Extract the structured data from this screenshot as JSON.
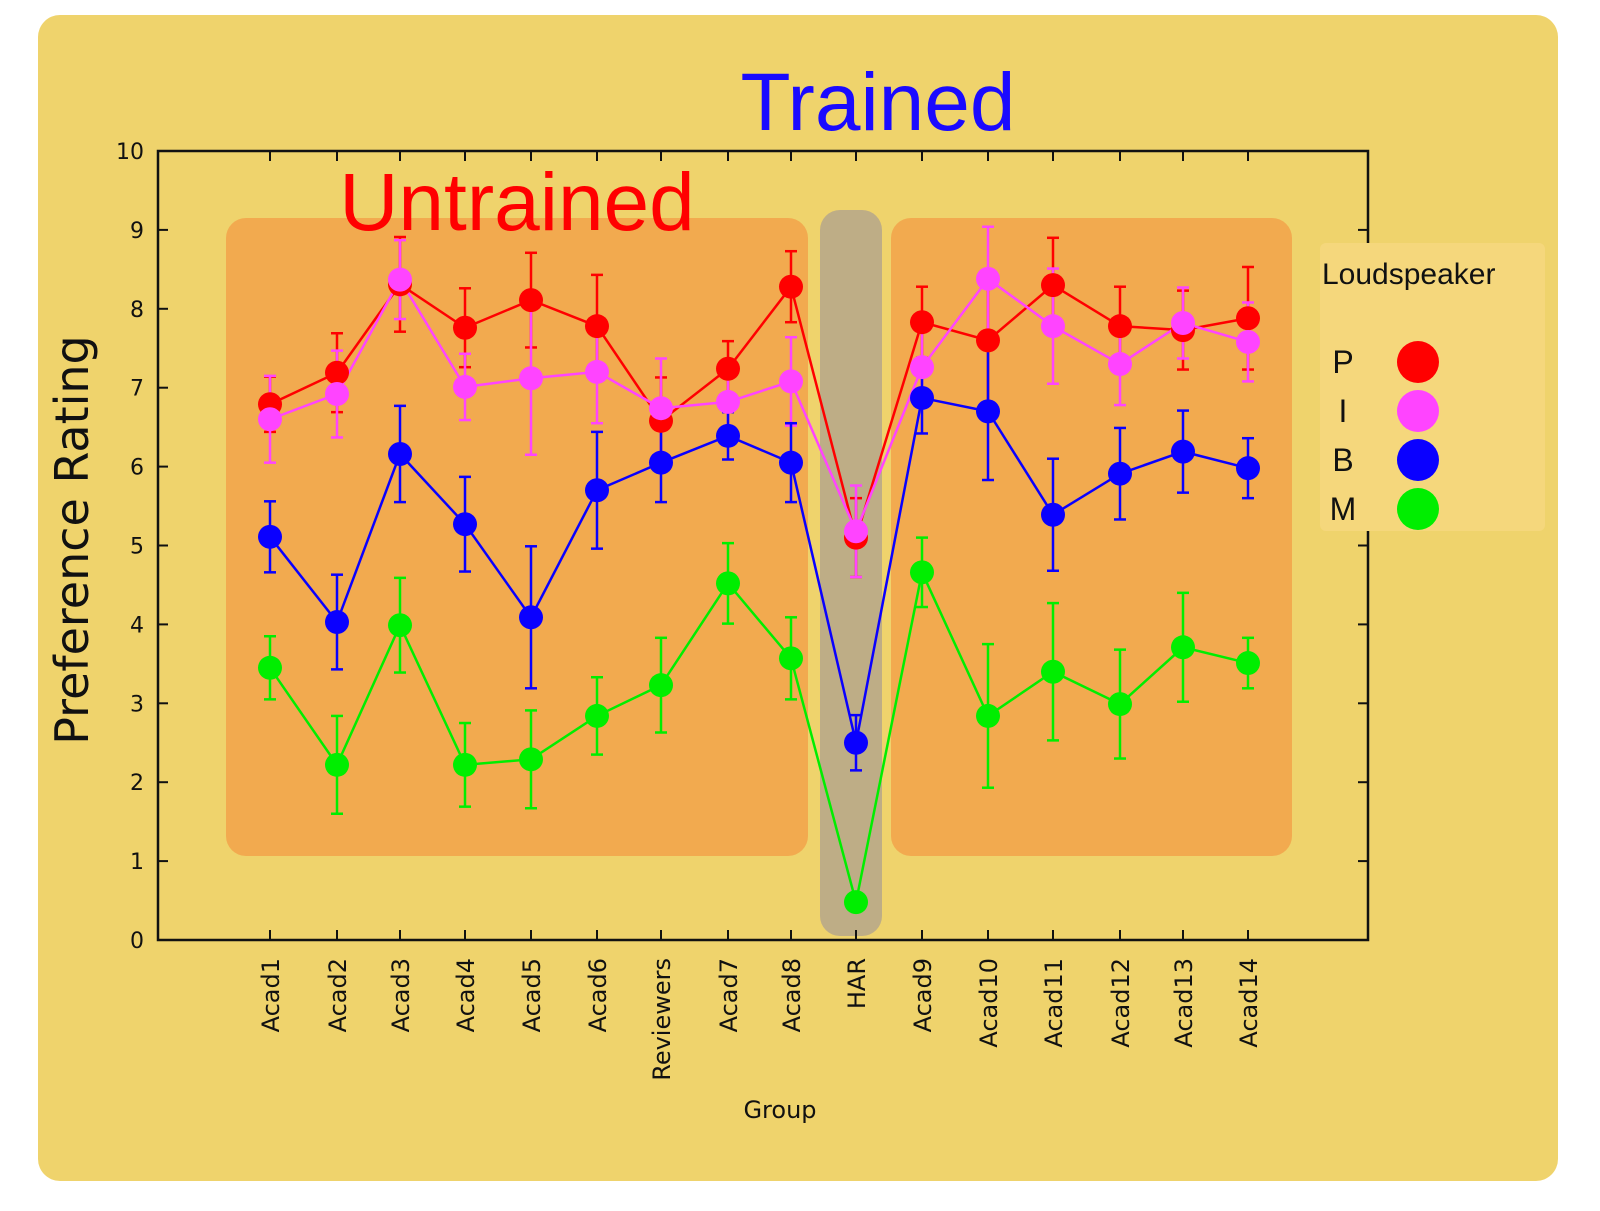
{
  "chart_data": {
    "type": "line",
    "title_trained": "Trained",
    "title_untrained": "Untrained",
    "xlabel": "Group",
    "ylabel": "Preference  Rating",
    "ylim": [
      0,
      10
    ],
    "yticks": [
      "0",
      "1",
      "2",
      "3",
      "4",
      "5",
      "6",
      "7",
      "8",
      "9",
      "10"
    ],
    "categories": [
      "Acad1",
      "Acad2",
      "Acad3",
      "Acad4",
      "Acad5",
      "Acad6",
      "Reviewers",
      "Acad7",
      "Acad8",
      "HAR",
      "Acad9",
      "Acad10",
      "Acad11",
      "Acad12",
      "Acad13",
      "Acad14"
    ],
    "legend": {
      "title": "Loudspeaker",
      "placement": "right"
    },
    "series": [
      {
        "name": "P",
        "color": "#ff0000",
        "values": [
          6.79,
          7.19,
          8.31,
          7.76,
          8.11,
          7.78,
          6.58,
          7.24,
          8.28,
          5.1,
          7.83,
          7.6,
          8.3,
          7.78,
          7.73,
          7.88
        ],
        "errors": [
          0.35,
          0.5,
          0.6,
          0.5,
          0.6,
          0.65,
          0.55,
          0.35,
          0.45,
          0.5,
          0.45,
          0.8,
          0.6,
          0.5,
          0.5,
          0.65
        ]
      },
      {
        "name": "I",
        "color": "#ff44ff",
        "values": [
          6.6,
          6.92,
          8.37,
          7.01,
          7.12,
          7.2,
          6.74,
          6.82,
          7.08,
          5.18,
          7.26,
          8.38,
          7.78,
          7.3,
          7.82,
          7.58
        ],
        "errors": [
          0.55,
          0.55,
          0.5,
          0.42,
          0.97,
          0.65,
          0.63,
          0.35,
          0.56,
          0.58,
          0.5,
          0.66,
          0.73,
          0.52,
          0.45,
          0.5
        ]
      },
      {
        "name": "B",
        "color": "#0a00ff",
        "values": [
          5.11,
          4.03,
          6.16,
          5.27,
          4.09,
          5.7,
          6.05,
          6.39,
          6.05,
          2.5,
          6.87,
          6.7,
          5.39,
          5.91,
          6.19,
          5.98
        ],
        "errors": [
          0.45,
          0.6,
          0.61,
          0.6,
          0.9,
          0.74,
          0.5,
          0.3,
          0.5,
          0.35,
          0.45,
          0.87,
          0.71,
          0.58,
          0.52,
          0.38
        ]
      },
      {
        "name": "M",
        "color": "#00ee00",
        "values": [
          3.45,
          2.22,
          3.99,
          2.22,
          2.29,
          2.84,
          3.23,
          4.52,
          3.57,
          0.48,
          4.66,
          2.84,
          3.4,
          2.99,
          3.71,
          3.51
        ],
        "errors": [
          0.4,
          0.62,
          0.6,
          0.53,
          0.62,
          0.49,
          0.6,
          0.51,
          0.52,
          0.05,
          0.44,
          0.91,
          0.87,
          0.69,
          0.69,
          0.32
        ]
      }
    ],
    "grid": false
  }
}
